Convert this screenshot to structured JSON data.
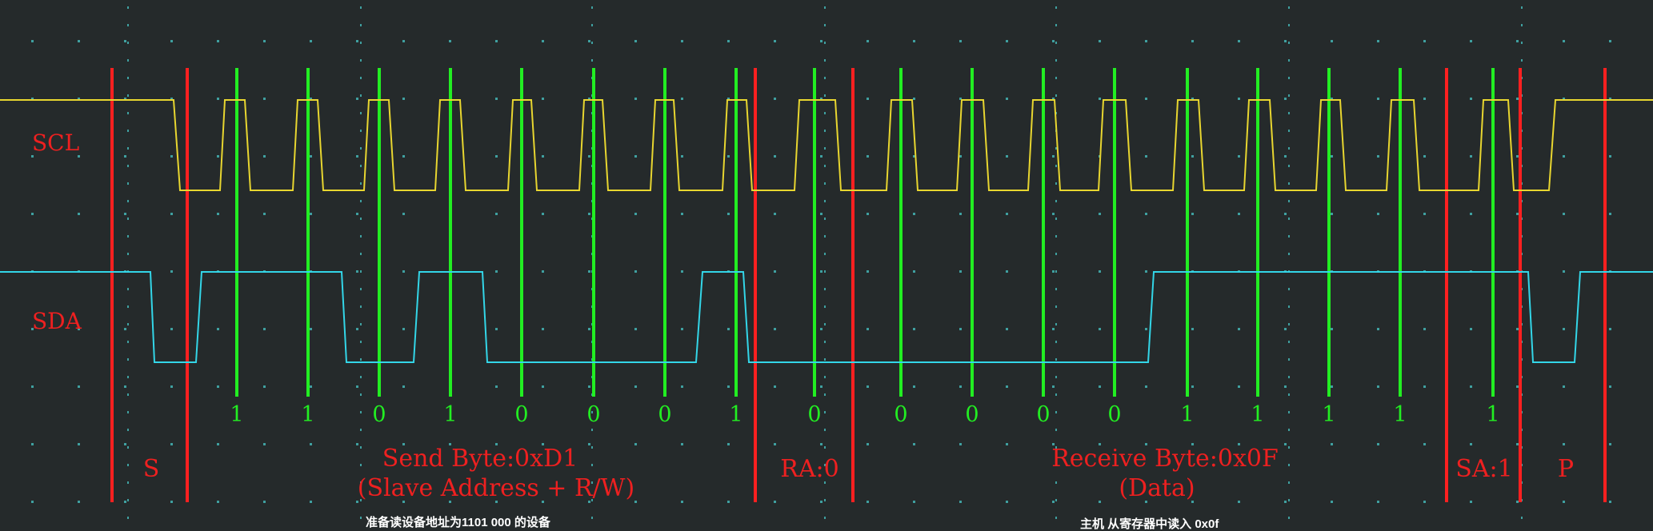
{
  "channels": {
    "scl": {
      "label": "SCL",
      "color": "#e8d630"
    },
    "sda": {
      "label": "SDA",
      "color": "#33d6e8"
    }
  },
  "colors": {
    "background": "#252a2b",
    "grid_dots": "#3fa0a0",
    "boundary": "#ff2020",
    "sample_line": "#22ee22",
    "annotation": "#ee2020",
    "caption": "#ffffff"
  },
  "bit_values": [
    "1",
    "1",
    "0",
    "1",
    "0",
    "0",
    "0",
    "1",
    "0",
    "0",
    "0",
    "0",
    "0",
    "1",
    "1",
    "1",
    "1",
    "1"
  ],
  "segments": {
    "start": "S",
    "send": "Send Byte:0xD1",
    "send_sub": "(Slave Address + R/W)",
    "ack_receiver": "RA:0",
    "receive": "Receive Byte:0x0F",
    "receive_sub": "(Data)",
    "ack_sender": "SA:1",
    "stop": "P"
  },
  "captions": {
    "left": "准备读设备地址为1101 000 的设备",
    "right": "主机 从寄存器中读入 0x0f"
  }
}
